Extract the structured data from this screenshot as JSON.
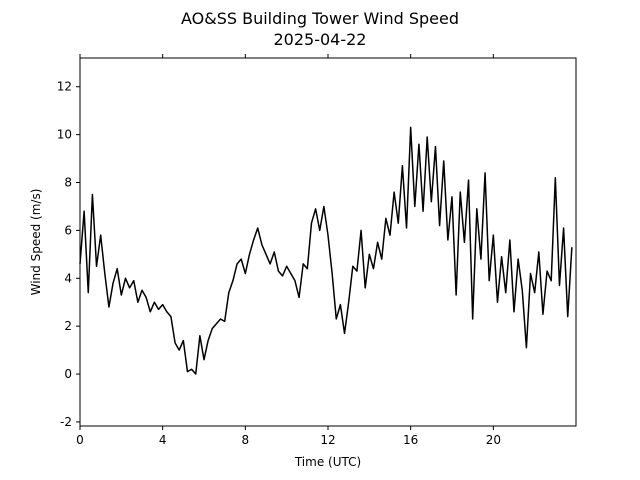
{
  "chart_data": {
    "type": "line",
    "title": "AO&SS Building Tower Wind Speed",
    "subtitle": "2025-04-22",
    "x_label": "Time (UTC)",
    "y_label": "Wind Speed (m/s)",
    "color": "#000000",
    "xlim": [
      0,
      24
    ],
    "ylim": [
      -2.17,
      13.2
    ],
    "xticks": [
      0,
      4,
      8,
      12,
      16,
      20
    ],
    "yticks": [
      -2,
      0,
      2,
      4,
      6,
      8,
      10,
      12
    ],
    "x": [
      0.0,
      0.2,
      0.4,
      0.6,
      0.8,
      1.0,
      1.2,
      1.4,
      1.6,
      1.8,
      2.0,
      2.2,
      2.4,
      2.6,
      2.8,
      3.0,
      3.2,
      3.4,
      3.6,
      3.8,
      4.0,
      4.2,
      4.4,
      4.6,
      4.8,
      5.0,
      5.2,
      5.4,
      5.6,
      5.8,
      6.0,
      6.2,
      6.4,
      6.6,
      6.8,
      7.0,
      7.2,
      7.4,
      7.6,
      7.8,
      8.0,
      8.2,
      8.4,
      8.6,
      8.8,
      9.0,
      9.2,
      9.4,
      9.6,
      9.8,
      10.0,
      10.2,
      10.4,
      10.6,
      10.8,
      11.0,
      11.2,
      11.4,
      11.6,
      11.8,
      12.0,
      12.2,
      12.4,
      12.6,
      12.8,
      13.0,
      13.2,
      13.4,
      13.6,
      13.8,
      14.0,
      14.2,
      14.4,
      14.6,
      14.8,
      15.0,
      15.2,
      15.4,
      15.6,
      15.8,
      16.0,
      16.2,
      16.4,
      16.6,
      16.8,
      17.0,
      17.2,
      17.4,
      17.6,
      17.8,
      18.0,
      18.2,
      18.4,
      18.6,
      18.8,
      19.0,
      19.2,
      19.4,
      19.6,
      19.8,
      20.0,
      20.2,
      20.4,
      20.6,
      20.8,
      21.0,
      21.2,
      21.4,
      21.6,
      21.8,
      22.0,
      22.2,
      22.4,
      22.6,
      22.8,
      23.0,
      23.2,
      23.4,
      23.6,
      23.8
    ],
    "values": [
      4.6,
      6.8,
      3.4,
      7.5,
      4.5,
      5.8,
      4.2,
      2.8,
      3.8,
      4.4,
      3.3,
      4.0,
      3.6,
      3.9,
      3.0,
      3.5,
      3.2,
      2.6,
      3.0,
      2.7,
      2.9,
      2.6,
      2.4,
      1.3,
      1.0,
      1.4,
      0.1,
      0.2,
      0.0,
      1.6,
      0.6,
      1.4,
      1.9,
      2.1,
      2.3,
      2.2,
      3.4,
      3.9,
      4.6,
      4.8,
      4.2,
      5.0,
      5.6,
      6.1,
      5.4,
      5.0,
      4.6,
      5.1,
      4.3,
      4.1,
      4.5,
      4.2,
      3.9,
      3.2,
      4.6,
      4.4,
      6.3,
      6.9,
      6.0,
      7.0,
      5.8,
      4.2,
      2.3,
      2.9,
      1.7,
      3.0,
      4.5,
      4.3,
      6.0,
      3.6,
      5.0,
      4.4,
      5.5,
      4.8,
      6.5,
      5.8,
      7.6,
      6.3,
      8.7,
      6.1,
      10.3,
      7.0,
      9.6,
      6.8,
      9.9,
      7.2,
      9.5,
      6.2,
      8.9,
      5.6,
      7.4,
      3.3,
      7.6,
      5.5,
      8.1,
      2.3,
      6.9,
      4.8,
      8.4,
      3.9,
      5.8,
      3.0,
      4.9,
      3.4,
      5.6,
      2.6,
      4.8,
      3.5,
      1.1,
      4.2,
      3.4,
      5.1,
      2.5,
      4.3,
      3.9,
      8.2,
      3.7,
      6.1,
      2.4,
      5.3
    ]
  }
}
